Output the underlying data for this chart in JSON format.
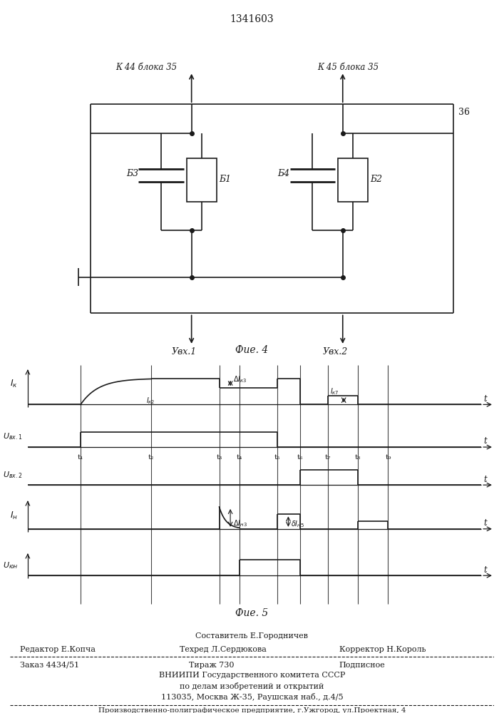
{
  "title": "1341603",
  "fig4_label": "Фие. 4",
  "fig5_label": "Фие. 5",
  "circuit": {
    "label_left": "К 44 блока 35",
    "label_right": "К 45 блока 35",
    "label_36": "36",
    "label_b1": "Б1",
    "label_b2": "Б2",
    "label_b3": "Б3",
    "label_b4": "Б4",
    "label_uvx1": "Увх.1",
    "label_uvx2": "Увх.2"
  },
  "timing": {
    "t_labels": [
      "t₁",
      "t₂",
      "t₃",
      "t₄",
      "t₅",
      "t₆",
      "t₇",
      "t₈",
      "t₉"
    ],
    "ik_label": "Iк",
    "ik2_label": "Iк₂",
    "ik3_label": "ΔIк₃",
    "ik7_label": "Iк₇",
    "uvx1_label": "Uвх.1",
    "uvx2_label": "Uвх.2",
    "ih_label": "Iн",
    "ih3_label": "ΔIн₃",
    "ih5_label": "ΔIн₅",
    "uyn_label": "Uюн",
    "t_axis": "t"
  },
  "footer": {
    "compiler": "Составитель Е.Городничев",
    "editor": "Редактор Е.Копча",
    "techred": "Техред Л.Сердюкова",
    "corrector": "Корректор Н.Король",
    "order": "Заказ 4434/51",
    "tirazh": "Тираж 730",
    "podpisnoe": "Подписное",
    "vniipи": "ВНИИПИ Государственного комитета СССР",
    "po_delam": "по делам изобретений и открытий",
    "address": "113035, Москва Ж-35, Раушская наб., д.4/5",
    "factory": "Производственно-полиграфическое предприятие, г.Ужгород, ул.Проектная, 4"
  },
  "line_color": "#1a1a1a"
}
